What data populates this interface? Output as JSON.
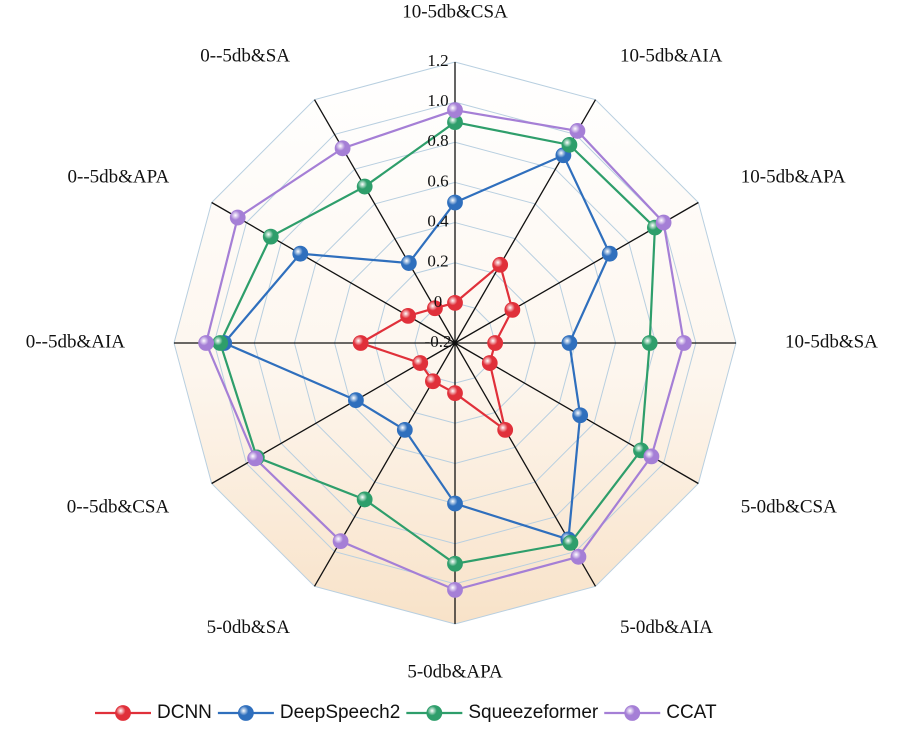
{
  "chart_data": {
    "type": "radar",
    "categories": [
      "10-5db&CSA",
      "10-5db&AIA",
      "10-5db&APA",
      "10-5db&SA",
      "5-0db&CSA",
      "5-0db&AIA",
      "5-0db&APA",
      "5-0db&SA",
      "0--5db&CSA",
      "0--5db&AIA",
      "0--5db&APA",
      "0--5db&SA"
    ],
    "rlim": [
      -0.2,
      1.2
    ],
    "rticks": [
      -0.2,
      0,
      0.2,
      0.4,
      0.6,
      0.8,
      {
        "value": 1,
        "label": "1.0"
      },
      1.2
    ],
    "grid": true,
    "legend": "bottom",
    "series": [
      {
        "name": "DCNN",
        "color": "#e0303a",
        "values": [
          0.0,
          0.25,
          0.13,
          0.0,
          0.0,
          0.3,
          0.05,
          0.02,
          0.0,
          0.27,
          0.07,
          0.0
        ]
      },
      {
        "name": "DeepSpeech2",
        "color": "#2f6fbd",
        "values": [
          0.5,
          0.88,
          0.69,
          0.37,
          0.52,
          0.93,
          0.6,
          0.3,
          0.37,
          0.95,
          0.69,
          0.26
        ]
      },
      {
        "name": "Squeezeformer",
        "color": "#2e9e6b",
        "values": [
          0.9,
          0.94,
          0.95,
          0.77,
          0.87,
          0.95,
          0.9,
          0.7,
          0.94,
          0.97,
          0.86,
          0.7
        ]
      },
      {
        "name": "CCAT",
        "color": "#a57fd6",
        "values": [
          0.96,
          1.02,
          1.0,
          0.94,
          0.93,
          1.03,
          1.03,
          0.94,
          0.95,
          1.04,
          1.05,
          0.92
        ]
      }
    ]
  }
}
